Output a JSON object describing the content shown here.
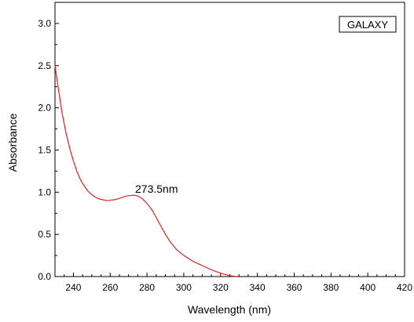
{
  "chart_data": {
    "type": "line",
    "xlabel": "Wavelength (nm)",
    "ylabel": "Absorbance",
    "xlim": [
      230,
      420
    ],
    "ylim": [
      0,
      3.25
    ],
    "xticks": [
      "240",
      "260",
      "280",
      "300",
      "320",
      "340",
      "360",
      "380",
      "400",
      "420"
    ],
    "yticks": [
      "0.0",
      "0.5",
      "1.0",
      "1.5",
      "2.0",
      "2.5",
      "3.0"
    ],
    "grid": false,
    "legend_position": "top-right",
    "annotation": {
      "text": "273.5nm",
      "x": 273.5,
      "y": 0.96
    },
    "series": [
      {
        "name": "GALAXY",
        "color": "#e8201e",
        "x": [
          230,
          232,
          234,
          236,
          238,
          240,
          242,
          244,
          246,
          248,
          250,
          252,
          254,
          256,
          258,
          260,
          262,
          264,
          266,
          268,
          270,
          272,
          273.5,
          275,
          277,
          279,
          281,
          283,
          285,
          287,
          290,
          293,
          296,
          300,
          305,
          310,
          315,
          320,
          325,
          329
        ],
        "values": [
          2.5,
          2.2,
          1.92,
          1.7,
          1.52,
          1.37,
          1.24,
          1.14,
          1.07,
          1.01,
          0.97,
          0.94,
          0.92,
          0.91,
          0.9,
          0.905,
          0.91,
          0.92,
          0.935,
          0.95,
          0.958,
          0.962,
          0.963,
          0.955,
          0.93,
          0.89,
          0.84,
          0.78,
          0.7,
          0.62,
          0.5,
          0.4,
          0.32,
          0.25,
          0.18,
          0.13,
          0.08,
          0.04,
          0.01,
          0.0
        ]
      }
    ]
  }
}
